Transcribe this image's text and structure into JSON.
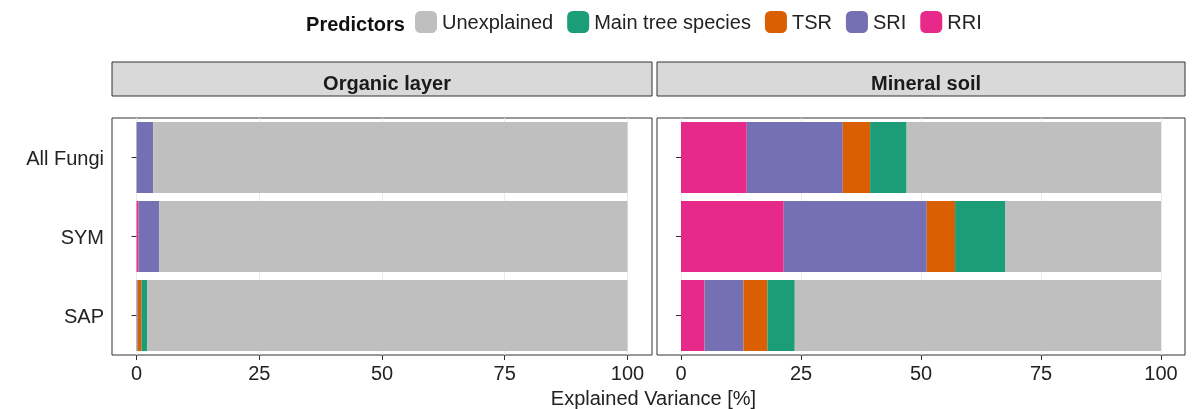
{
  "chart_data": [
    {
      "type": "bar",
      "title": "Organic layer",
      "xlabel": "Explained Variance [%]",
      "legend_title": "Predictors",
      "legend": "top",
      "orientation": "horizontal",
      "stacked": true,
      "grid": "x",
      "categories": [
        "All Fungi",
        "SYM",
        "SAP"
      ],
      "xlim": [
        -5,
        105
      ],
      "xticks": [
        0,
        25,
        50,
        75,
        100
      ],
      "series": [
        {
          "name": "RRI",
          "color": "#e7298a",
          "values": [
            0,
            0.4,
            0
          ]
        },
        {
          "name": "SRI",
          "color": "#7570b3",
          "values": [
            3.4,
            4.2,
            0.2
          ]
        },
        {
          "name": "TSR",
          "color": "#d95f02",
          "values": [
            0,
            0,
            0.8
          ]
        },
        {
          "name": "Main tree species",
          "color": "#1b9e77",
          "values": [
            0,
            0,
            1.2
          ]
        },
        {
          "name": "Unexplained",
          "color": "#bfbfbf",
          "values": [
            96.6,
            95.4,
            97.8
          ]
        }
      ]
    },
    {
      "type": "bar",
      "title": "Mineral soil",
      "orientation": "horizontal",
      "stacked": true,
      "grid": "x",
      "tick_labels": "x",
      "categories": [
        null,
        null,
        null
      ],
      "xlim": [
        -5,
        105
      ],
      "xticks": [
        0,
        25,
        50,
        75,
        100
      ],
      "series": [
        {
          "color": "#e7298a",
          "values": [
            13.7,
            21.4,
            4.9
          ]
        },
        {
          "color": "#7570b3",
          "values": [
            20,
            29.8,
            8.1
          ]
        },
        {
          "color": "#d95f02",
          "values": [
            5.7,
            5.9,
            5
          ]
        },
        {
          "color": "#1b9e77",
          "values": [
            7.6,
            10.4,
            5.7
          ]
        },
        {
          "color": "#bfbfbf",
          "values": [
            53,
            32.5,
            76.3
          ]
        }
      ]
    }
  ]
}
